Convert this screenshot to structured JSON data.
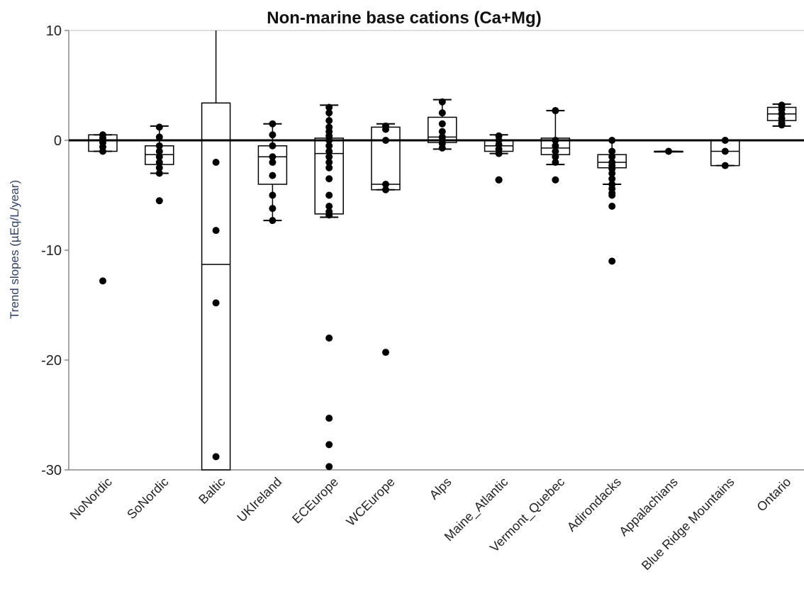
{
  "chart_data": {
    "type": "box",
    "title": "Non-marine base cations (Ca+Mg)",
    "xlabel": "",
    "ylabel": "Trend slopes (µEq/L/year)",
    "ylim": [
      -30,
      10
    ],
    "yticks": [
      10,
      0,
      -10,
      -20,
      -30
    ],
    "ytick_labels": [
      "10",
      "0",
      "-10",
      "-20",
      "-30"
    ],
    "reference_line": 0,
    "grid": false,
    "legend": "none",
    "categories": [
      "NoNordic",
      "SoNordic",
      "Baltic",
      "UKIreland",
      "ECEurope",
      "WCEurope",
      "Alps",
      "Maine_Atlantic",
      "Vermont_Quebec",
      "Adirondacks",
      "Appalachians",
      "Blue Ridge Mountains",
      "Ontario"
    ],
    "boxes": [
      {
        "category": "NoNordic",
        "min": -1.0,
        "q1": -1.0,
        "median": 0.0,
        "q3": 0.5,
        "max": 0.5
      },
      {
        "category": "SoNordic",
        "min": -3.0,
        "q1": -2.2,
        "median": -1.3,
        "q3": -0.5,
        "max": 1.3
      },
      {
        "category": "Baltic",
        "min": -30.0,
        "q1": -30.0,
        "median": -11.3,
        "q3": 3.4,
        "max": 10.0
      },
      {
        "category": "UKIreland",
        "min": -7.3,
        "q1": -4.0,
        "median": -1.5,
        "q3": -0.5,
        "max": 1.5
      },
      {
        "category": "ECEurope",
        "min": -7.0,
        "q1": -6.7,
        "median": -1.2,
        "q3": 0.2,
        "max": 3.2
      },
      {
        "category": "WCEurope",
        "min": -4.5,
        "q1": -4.5,
        "median": -4.0,
        "q3": 1.2,
        "max": 1.5
      },
      {
        "category": "Alps",
        "min": -0.8,
        "q1": -0.2,
        "median": 0.3,
        "q3": 2.1,
        "max": 3.7
      },
      {
        "category": "Maine_Atlantic",
        "min": -1.2,
        "q1": -1.0,
        "median": -0.5,
        "q3": 0.0,
        "max": 0.5
      },
      {
        "category": "Vermont_Quebec",
        "min": -2.2,
        "q1": -1.3,
        "median": -0.7,
        "q3": 0.2,
        "max": 2.7
      },
      {
        "category": "Adirondacks",
        "min": -4.0,
        "q1": -2.5,
        "median": -2.0,
        "q3": -1.3,
        "max": 0.0
      },
      {
        "category": "Appalachians",
        "min": -1.0,
        "q1": -1.0,
        "median": -1.0,
        "q3": -1.0,
        "max": -1.0
      },
      {
        "category": "Blue Ridge Mountains",
        "min": -2.3,
        "q1": -2.3,
        "median": -1.0,
        "q3": 0.0,
        "max": 0.0
      },
      {
        "category": "Ontario",
        "min": 1.3,
        "q1": 1.8,
        "median": 2.4,
        "q3": 3.0,
        "max": 3.3
      }
    ],
    "points": [
      {
        "category": "NoNordic",
        "values": [
          0.5,
          0.2,
          -0.2,
          -0.6,
          -1.0,
          -12.8
        ]
      },
      {
        "category": "SoNordic",
        "values": [
          1.2,
          0.3,
          -0.5,
          -1.0,
          -1.5,
          -2.0,
          -2.5,
          -3.0,
          -5.5
        ]
      },
      {
        "category": "Baltic",
        "values": [
          -2.0,
          -8.2,
          -14.8,
          -28.8
        ]
      },
      {
        "category": "UKIreland",
        "values": [
          1.5,
          0.5,
          -0.5,
          -1.5,
          -2.0,
          -3.2,
          -5.0,
          -6.2,
          -7.3
        ]
      },
      {
        "category": "ECEurope",
        "values": [
          3.0,
          2.5,
          1.8,
          1.2,
          0.8,
          0.4,
          0.0,
          -0.5,
          -1.0,
          -1.5,
          -2.0,
          -2.5,
          -3.5,
          -5.0,
          -6.0,
          -6.5,
          -6.8,
          -18.0,
          -25.3,
          -27.7,
          -29.7
        ]
      },
      {
        "category": "WCEurope",
        "values": [
          1.3,
          1.0,
          0.0,
          -4.0,
          -4.5,
          -19.3
        ]
      },
      {
        "category": "Alps",
        "values": [
          3.5,
          2.5,
          1.5,
          0.8,
          0.3,
          0.0,
          -0.3,
          -0.7
        ]
      },
      {
        "category": "Maine_Atlantic",
        "values": [
          0.4,
          0.0,
          -0.4,
          -0.8,
          -1.2,
          -3.6,
          -3.6
        ]
      },
      {
        "category": "Vermont_Quebec",
        "values": [
          2.7,
          2.7,
          0.0,
          -0.5,
          -1.0,
          -1.5,
          -2.0,
          -3.6
        ]
      },
      {
        "category": "Adirondacks",
        "values": [
          0.0,
          -1.0,
          -1.5,
          -2.0,
          -2.3,
          -2.6,
          -3.0,
          -3.5,
          -4.0,
          -4.4,
          -4.8,
          -5.0,
          -6.0,
          -11.0
        ]
      },
      {
        "category": "Appalachians",
        "values": [
          -1.0
        ]
      },
      {
        "category": "Blue Ridge Mountains",
        "values": [
          0.0,
          -1.0,
          -2.3
        ]
      },
      {
        "category": "Ontario",
        "values": [
          3.2,
          2.8,
          2.4,
          2.0,
          1.6,
          1.4
        ]
      }
    ]
  },
  "colors": {
    "background": "#ffffff",
    "axis": "#888888",
    "zero_line": "#000000",
    "box_stroke": "#000000",
    "point": "#000000",
    "ylabel": "#2c3e73",
    "text": "#222222"
  }
}
